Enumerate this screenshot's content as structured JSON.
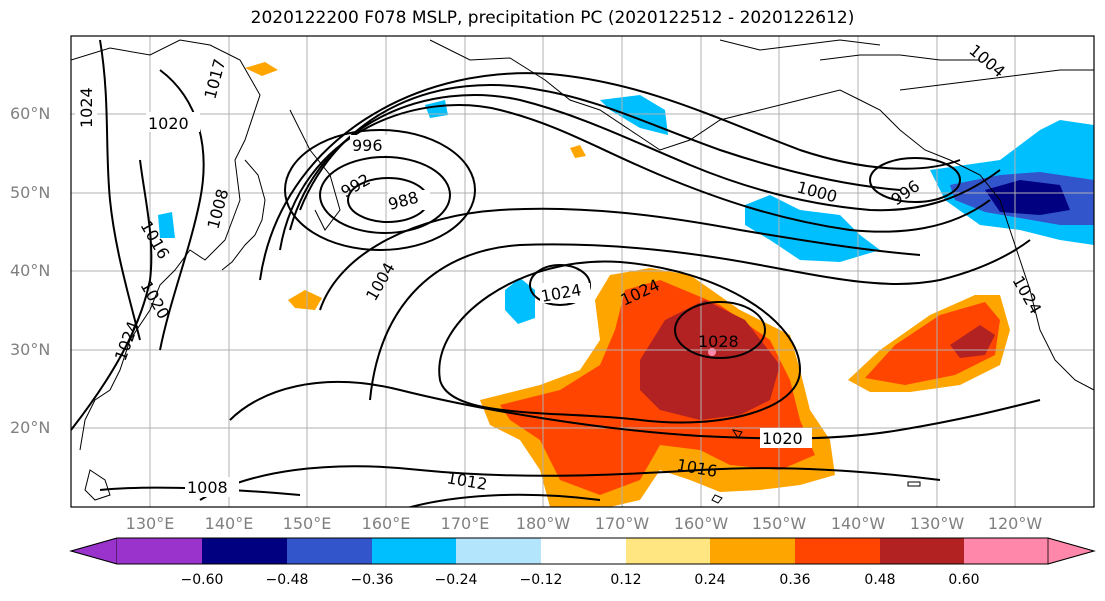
{
  "title": "2020122200 F078 MSLP, precipitation PC (2020122512 - 2020122612)",
  "lat_labels": [
    "60°N",
    "50°N",
    "40°N",
    "30°N",
    "20°N"
  ],
  "lon_labels": [
    "130°E",
    "140°E",
    "150°E",
    "160°E",
    "170°E",
    "180°W",
    "170°W",
    "160°W",
    "150°W",
    "140°W",
    "130°W",
    "120°W"
  ],
  "colorbar": {
    "labels": [
      "−0.60",
      "−0.48",
      "−0.36",
      "−0.24",
      "−0.12",
      "0.12",
      "0.24",
      "0.36",
      "0.48",
      "0.60"
    ],
    "colors": [
      "#9933cc",
      "#000080",
      "#3355cc",
      "#00bfff",
      "#b3e5fc",
      "#ffffff",
      "#ffe680",
      "#ffa500",
      "#ff4500",
      "#b22222",
      "#ff88aa"
    ]
  },
  "isobar_labels": [
    "1024",
    "1020",
    "1017",
    "996",
    "992",
    "988",
    "1008",
    "1016",
    "1020",
    "1024",
    "1004",
    "1024",
    "1028",
    "1024",
    "1020",
    "1016",
    "1012",
    "1008",
    "1000",
    "996",
    "1024",
    "1004"
  ]
}
